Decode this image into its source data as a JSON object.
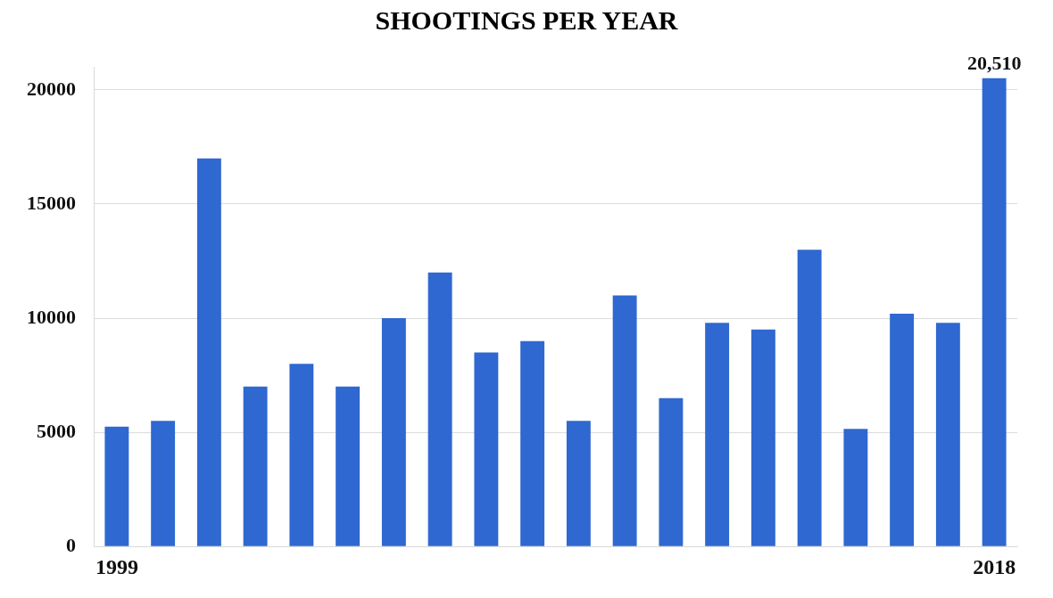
{
  "chart_data": {
    "type": "bar",
    "title": "SHOOTINGS PER YEAR",
    "categories": [
      "1999",
      null,
      null,
      null,
      null,
      null,
      null,
      null,
      null,
      null,
      null,
      null,
      null,
      null,
      null,
      null,
      null,
      null,
      null,
      "2018"
    ],
    "values": [
      5250,
      5500,
      17000,
      7000,
      8000,
      7000,
      10000,
      12000,
      8500,
      9000,
      5500,
      11000,
      6500,
      9800,
      9500,
      13000,
      5150,
      10200,
      9800,
      20510
    ],
    "value_labels": [
      null,
      null,
      null,
      null,
      null,
      null,
      null,
      null,
      null,
      null,
      null,
      null,
      null,
      null,
      null,
      null,
      null,
      null,
      null,
      "20,510"
    ],
    "color": "#2e68d0",
    "ylim": [
      0,
      21000
    ],
    "yticks": [
      0,
      5000,
      10000,
      15000,
      20000
    ],
    "grid": "y",
    "legend": false
  }
}
